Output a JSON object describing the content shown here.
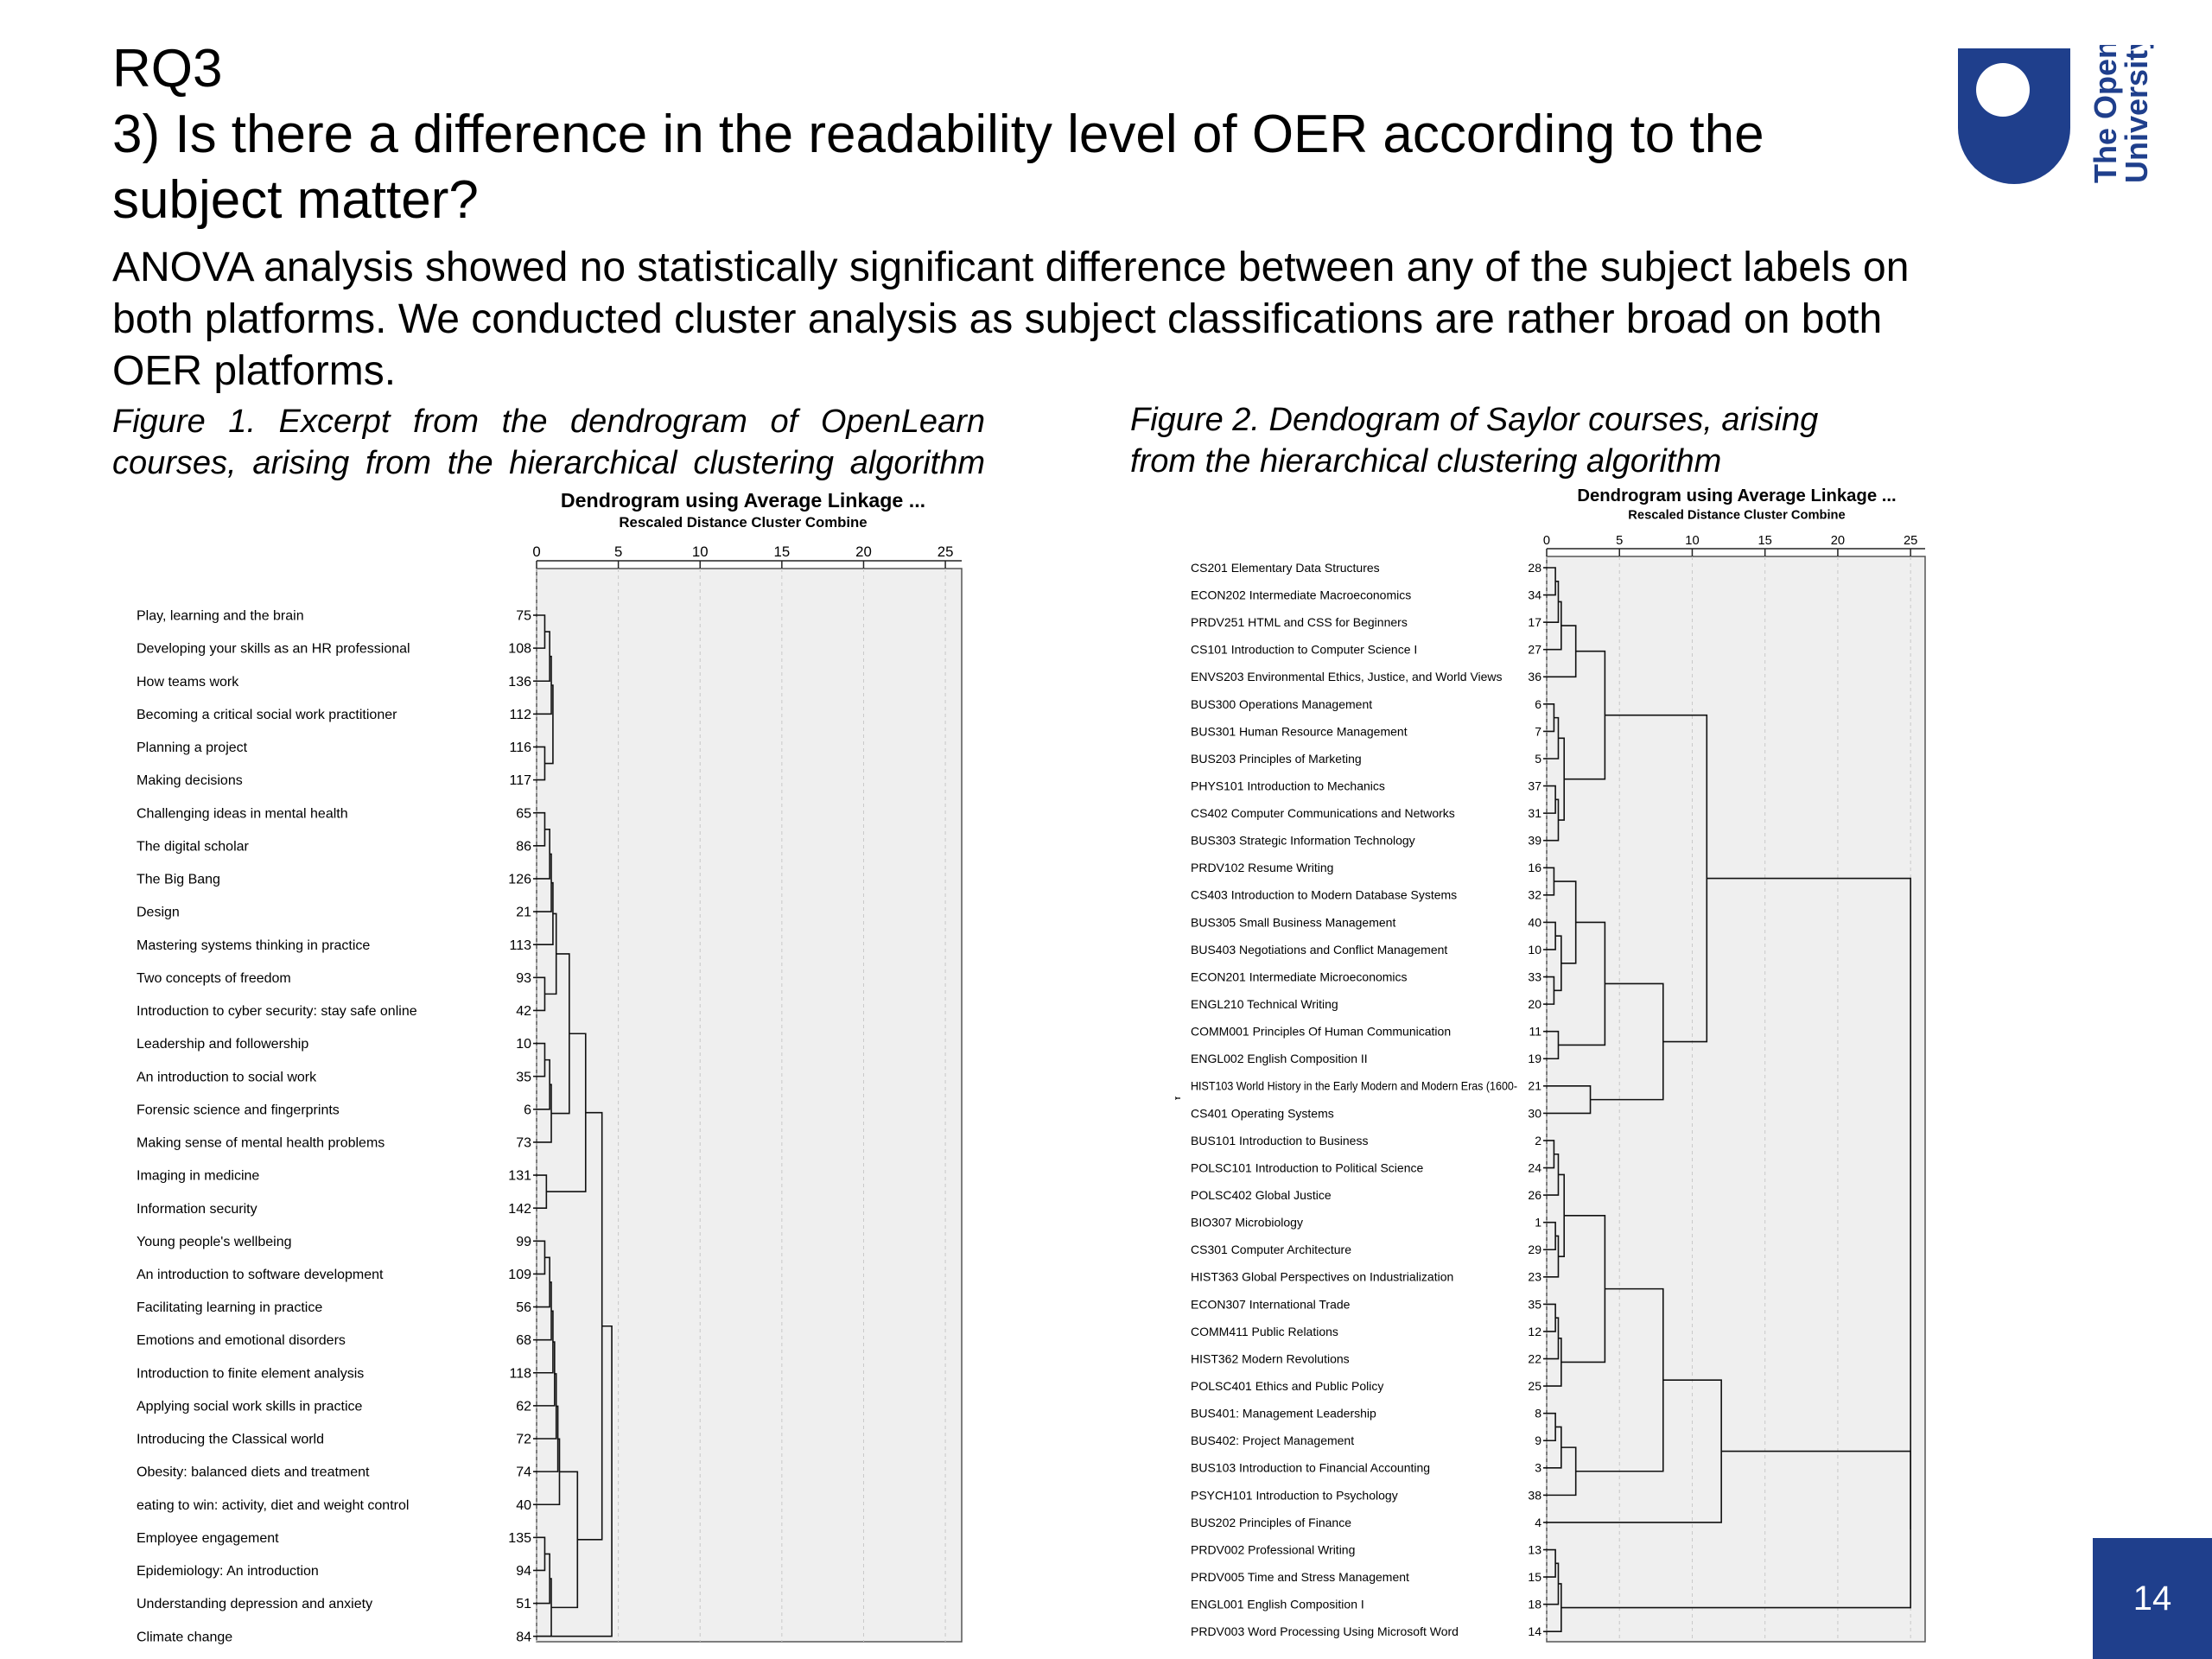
{
  "header": {
    "title_line1": "RQ3",
    "title_line2": "3) Is there a difference in the readability level of OER according to the subject matter?"
  },
  "body_text": "ANOVA analysis showed no statistically significant difference between any of the subject labels on both platforms. We conducted cluster analysis as subject classifications are rather broad on both OER platforms.",
  "figure1": {
    "caption_a": "Figure 1. Excerpt from the dendrogram of OpenLearn",
    "caption_b": "courses, arising from the hierarchical clustering algorithm"
  },
  "figure2": {
    "caption_a": "Figure 2. Dendogram of Saylor courses, arising",
    "caption_b": "from the hierarchical clustering algorithm"
  },
  "logo": {
    "text_line1": "The Open",
    "text_line2": "University",
    "color": "#1f3f8c"
  },
  "page_number": "14",
  "chart_data": [
    {
      "type": "dendrogram",
      "title": "Dendrogram using Average Linkage ...",
      "xlabel": "Rescaled Distance Cluster Combine",
      "ticks": [
        0,
        5,
        10,
        15,
        20,
        25
      ],
      "xlim": [
        0,
        26
      ],
      "leaves": [
        {
          "label": "Play, learning and the brain",
          "id": "75"
        },
        {
          "label": "Developing your skills as an HR professional",
          "id": "108"
        },
        {
          "label": "How teams work",
          "id": "136"
        },
        {
          "label": "Becoming a critical social work practitioner",
          "id": "112"
        },
        {
          "label": "Planning a project",
          "id": "116"
        },
        {
          "label": "Making decisions",
          "id": "117"
        },
        {
          "label": "Challenging ideas in mental health",
          "id": "65"
        },
        {
          "label": "The digital scholar",
          "id": "86"
        },
        {
          "label": "The Big Bang",
          "id": "126"
        },
        {
          "label": "Design",
          "id": "21"
        },
        {
          "label": "Mastering systems thinking in practice",
          "id": "113"
        },
        {
          "label": "Two concepts of freedom",
          "id": "93"
        },
        {
          "label": "Introduction to cyber security: stay safe online",
          "id": "42"
        },
        {
          "label": "Leadership and followership",
          "id": "10"
        },
        {
          "label": "An introduction to social work",
          "id": "35"
        },
        {
          "label": "Forensic science and fingerprints",
          "id": "6"
        },
        {
          "label": "Making sense of mental health problems",
          "id": "73"
        },
        {
          "label": "Imaging in medicine",
          "id": "131"
        },
        {
          "label": "Information security",
          "id": "142"
        },
        {
          "label": "Young people's wellbeing",
          "id": "99"
        },
        {
          "label": "An introduction to software development",
          "id": "109"
        },
        {
          "label": "Facilitating learning in practice",
          "id": "56"
        },
        {
          "label": "Emotions and emotional disorders",
          "id": "68"
        },
        {
          "label": "Introduction to finite element analysis",
          "id": "118"
        },
        {
          "label": "Applying social work skills in practice",
          "id": "62"
        },
        {
          "label": "Introducing the Classical world",
          "id": "72"
        },
        {
          "label": "Obesity: balanced diets and treatment",
          "id": "74"
        },
        {
          "label": "eating to win: activity, diet and weight control",
          "id": "40"
        },
        {
          "label": "Employee engagement",
          "id": "135"
        },
        {
          "label": "Epidemiology: An introduction",
          "id": "94"
        },
        {
          "label": "Understanding depression and anxiety",
          "id": "51"
        },
        {
          "label": "Climate change",
          "id": "84"
        }
      ],
      "merges": [
        [
          0,
          1,
          0.5
        ],
        [
          32,
          2,
          0.8
        ],
        [
          33,
          3,
          0.9
        ],
        [
          4,
          5,
          0.5
        ],
        [
          34,
          35,
          1.0
        ],
        [
          6,
          7,
          0.5
        ],
        [
          37,
          8,
          0.8
        ],
        [
          38,
          9,
          0.9
        ],
        [
          39,
          10,
          1.0
        ],
        [
          11,
          12,
          0.5
        ],
        [
          40,
          41,
          1.2
        ],
        [
          13,
          14,
          0.5
        ],
        [
          43,
          15,
          0.8
        ],
        [
          44,
          16,
          0.9
        ],
        [
          42,
          45,
          2.0
        ],
        [
          17,
          18,
          0.6
        ],
        [
          46,
          47,
          3.0
        ],
        [
          19,
          20,
          0.5
        ],
        [
          49,
          21,
          0.8
        ],
        [
          50,
          22,
          0.9
        ],
        [
          51,
          23,
          1.0
        ],
        [
          52,
          24,
          1.1
        ],
        [
          53,
          25,
          1.2
        ],
        [
          54,
          26,
          1.3
        ],
        [
          55,
          27,
          1.4
        ],
        [
          28,
          29,
          0.5
        ],
        [
          57,
          30,
          0.8
        ],
        [
          58,
          31,
          0.9
        ],
        [
          56,
          59,
          2.5
        ],
        [
          48,
          60,
          4.0
        ],
        [
          61,
          31,
          4.6
        ]
      ]
    },
    {
      "type": "dendrogram",
      "title": "Dendrogram using Average Linkage ...",
      "xlabel": "Rescaled Distance Cluster Combine",
      "ticks": [
        0,
        5,
        10,
        15,
        20,
        25
      ],
      "xlim": [
        0,
        26
      ],
      "axis_mark": "Y",
      "leaves": [
        {
          "label": "CS201 Elementary Data Structures",
          "id": "28"
        },
        {
          "label": "ECON202 Intermediate Macroeconomics",
          "id": "34"
        },
        {
          "label": "PRDV251 HTML and CSS for Beginners",
          "id": "17"
        },
        {
          "label": "CS101 Introduction to Computer Science I",
          "id": "27"
        },
        {
          "label": "ENVS203 Environmental Ethics, Justice, and World Views",
          "id": "36"
        },
        {
          "label": "BUS300 Operations Management",
          "id": "6"
        },
        {
          "label": "BUS301 Human Resource Management",
          "id": "7"
        },
        {
          "label": "BUS203 Principles of Marketing",
          "id": "5"
        },
        {
          "label": "PHYS101 Introduction to Mechanics",
          "id": "37"
        },
        {
          "label": "CS402 Computer Communications and Networks",
          "id": "31"
        },
        {
          "label": "BUS303 Strategic Information Technology",
          "id": "39"
        },
        {
          "label": "PRDV102 Resume Writing",
          "id": "16"
        },
        {
          "label": "CS403 Introduction to Modern Database Systems",
          "id": "32"
        },
        {
          "label": "BUS305 Small Business Management",
          "id": "40"
        },
        {
          "label": "BUS403 Negotiations and Conflict Management",
          "id": "10"
        },
        {
          "label": "ECON201 Intermediate Microeconomics",
          "id": "33"
        },
        {
          "label": "ENGL210 Technical Writing",
          "id": "20"
        },
        {
          "label": "COMM001 Principles Of Human Communication",
          "id": "11"
        },
        {
          "label": "ENGL002 English Composition II",
          "id": "19"
        },
        {
          "label": "HIST103 World History in the Early Modern and Modern Eras (1600-",
          "id": "21"
        },
        {
          "label": "CS401 Operating Systems",
          "id": "30"
        },
        {
          "label": "BUS101 Introduction to Business",
          "id": "2"
        },
        {
          "label": "POLSC101 Introduction to Political Science",
          "id": "24"
        },
        {
          "label": "POLSC402 Global Justice",
          "id": "26"
        },
        {
          "label": "BIO307 Microbiology",
          "id": "1"
        },
        {
          "label": "CS301 Computer Architecture",
          "id": "29"
        },
        {
          "label": "HIST363 Global Perspectives on Industrialization",
          "id": "23"
        },
        {
          "label": "ECON307 International Trade",
          "id": "35"
        },
        {
          "label": "COMM411 Public Relations",
          "id": "12"
        },
        {
          "label": "HIST362 Modern Revolutions",
          "id": "22"
        },
        {
          "label": "POLSC401 Ethics and Public Policy",
          "id": "25"
        },
        {
          "label": "BUS401: Management Leadership",
          "id": "8"
        },
        {
          "label": "BUS402: Project Management",
          "id": "9"
        },
        {
          "label": "BUS103 Introduction to Financial Accounting",
          "id": "3"
        },
        {
          "label": "PSYCH101 Introduction to Psychology",
          "id": "38"
        },
        {
          "label": "BUS202 Principles of Finance",
          "id": "4"
        },
        {
          "label": "PRDV002 Professional Writing",
          "id": "13"
        },
        {
          "label": "PRDV005 Time and Stress Management",
          "id": "15"
        },
        {
          "label": "ENGL001 English Composition I",
          "id": "18"
        },
        {
          "label": "PRDV003 Word Processing Using Microsoft Word",
          "id": "14"
        }
      ],
      "merges": [
        [
          0,
          1,
          0.6
        ],
        [
          40,
          2,
          0.8
        ],
        [
          41,
          3,
          1.0
        ],
        [
          5,
          6,
          0.5
        ],
        [
          43,
          7,
          0.8
        ],
        [
          42,
          4,
          2.0
        ],
        [
          8,
          9,
          0.6
        ],
        [
          46,
          10,
          0.8
        ],
        [
          44,
          47,
          1.2
        ],
        [
          45,
          48,
          4.0
        ],
        [
          11,
          12,
          0.5
        ],
        [
          13,
          14,
          0.6
        ],
        [
          15,
          16,
          0.5
        ],
        [
          51,
          52,
          1.0
        ],
        [
          50,
          53,
          2.0
        ],
        [
          17,
          18,
          0.8
        ],
        [
          54,
          55,
          4.0
        ],
        [
          19,
          20,
          3.0
        ],
        [
          56,
          57,
          8.0
        ],
        [
          49,
          58,
          11.0
        ],
        [
          21,
          22,
          0.5
        ],
        [
          60,
          23,
          0.8
        ],
        [
          24,
          25,
          0.6
        ],
        [
          62,
          26,
          0.8
        ],
        [
          61,
          63,
          1.2
        ],
        [
          27,
          28,
          0.6
        ],
        [
          65,
          29,
          0.8
        ],
        [
          66,
          30,
          1.0
        ],
        [
          64,
          67,
          4.0
        ],
        [
          31,
          32,
          0.6
        ],
        [
          69,
          33,
          1.0
        ],
        [
          70,
          34,
          2.0
        ],
        [
          68,
          71,
          8.0
        ],
        [
          72,
          35,
          12.0
        ],
        [
          36,
          37,
          0.6
        ],
        [
          74,
          38,
          0.8
        ],
        [
          75,
          39,
          1.0
        ],
        [
          73,
          76,
          25.0
        ],
        [
          59,
          77,
          25.0
        ]
      ]
    }
  ]
}
